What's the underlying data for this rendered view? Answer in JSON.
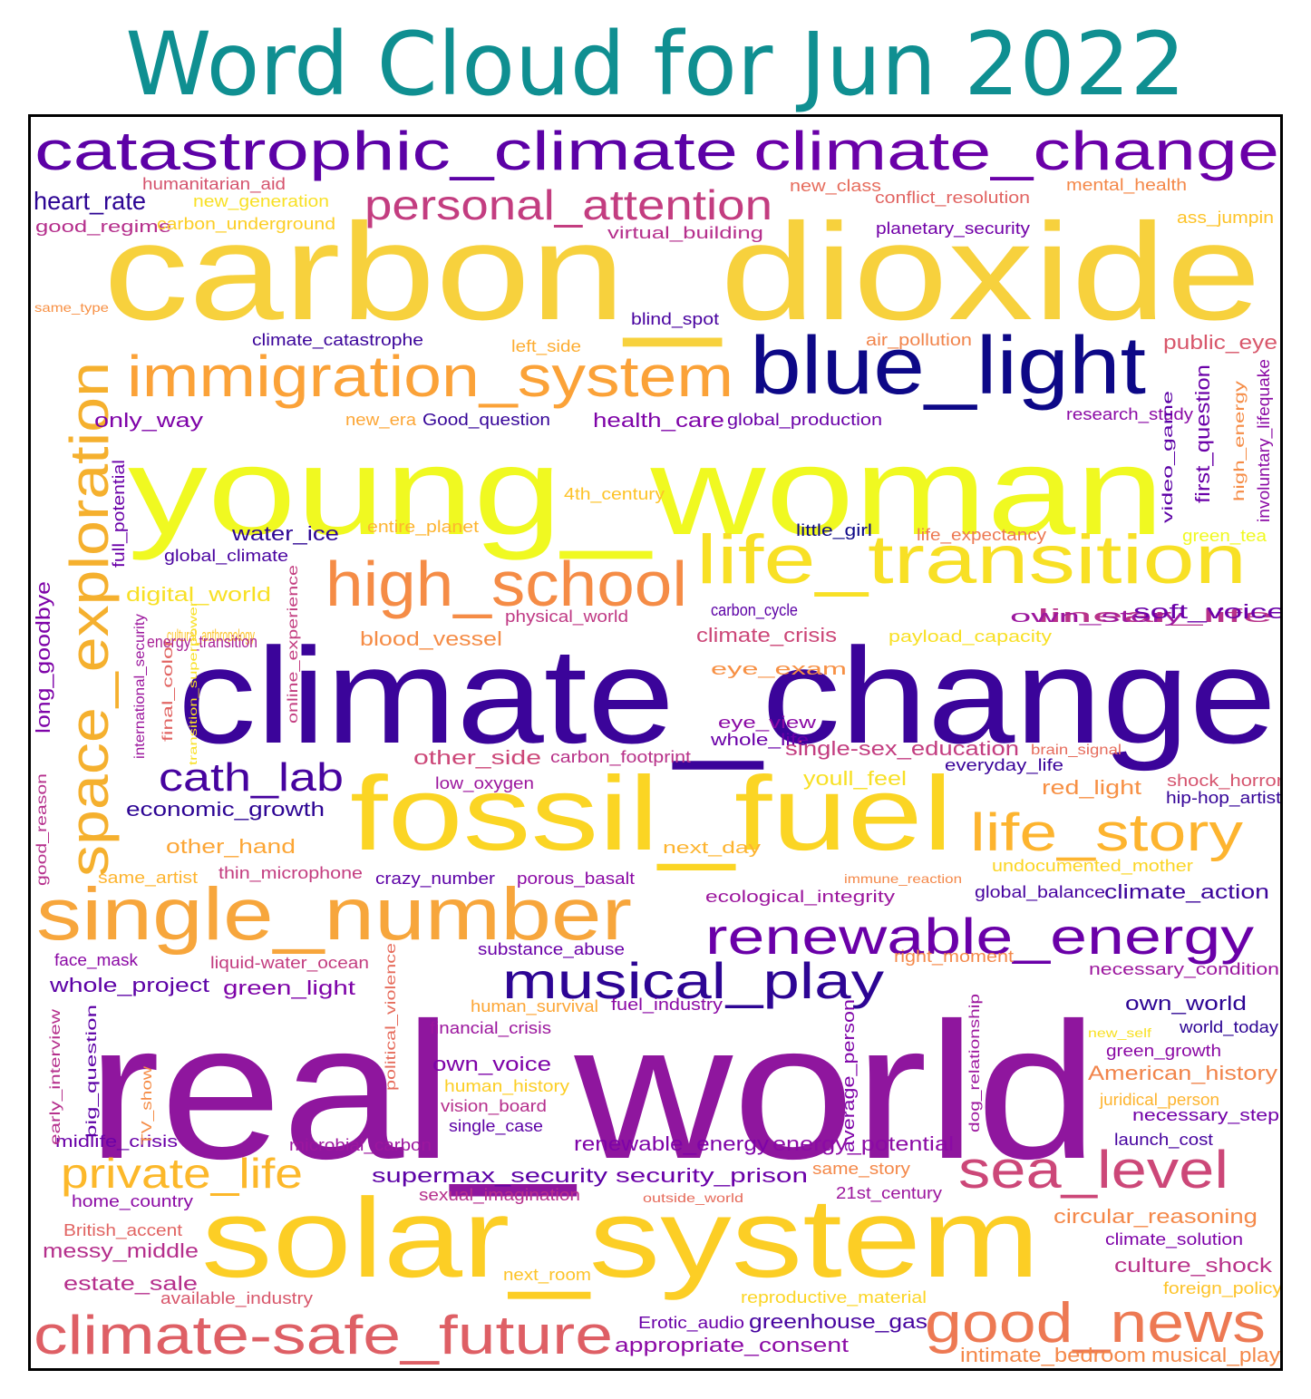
{
  "title": "Word Cloud for Jun 2022",
  "colors": {
    "title": "#0f8f91",
    "frame": "#000000",
    "palette": "plasma"
  },
  "words": [
    {
      "text": "real_world",
      "color": "#8f169e"
    },
    {
      "text": "climate_change",
      "color": "#3b049a"
    },
    {
      "text": "carbon_dioxide",
      "color": "#f7d13d"
    },
    {
      "text": "young_woman",
      "color": "#f0f921"
    },
    {
      "text": "solar_system",
      "color": "#fcce25"
    },
    {
      "text": "fossil_fuel",
      "color": "#fbd524"
    },
    {
      "text": "single_number",
      "color": "#f7a63c"
    },
    {
      "text": "blue_light",
      "color": "#0d0887"
    },
    {
      "text": "catastrophic_climate",
      "color": "#5c01a6"
    },
    {
      "text": "climate_change",
      "color": "#6a00a8"
    },
    {
      "text": "life_transition",
      "color": "#f8e025"
    },
    {
      "text": "high_school",
      "color": "#f58c46"
    },
    {
      "text": "immigration_system",
      "color": "#fba238"
    },
    {
      "text": "space_exploration",
      "color": "#f5b02e"
    },
    {
      "text": "renewable_energy",
      "color": "#6a00a8"
    },
    {
      "text": "musical_play",
      "color": "#2d0594"
    },
    {
      "text": "good_news",
      "color": "#ed7953"
    },
    {
      "text": "climate-safe_future",
      "color": "#de5f65"
    },
    {
      "text": "life_story",
      "color": "#fdb42f"
    },
    {
      "text": "sea_level",
      "color": "#cc4778"
    },
    {
      "text": "personal_attention",
      "color": "#c33d80"
    },
    {
      "text": "private_life",
      "color": "#fcb82a"
    },
    {
      "text": "cath_lab",
      "color": "#46039f"
    },
    {
      "text": "heart_rate",
      "color": "#2d0594"
    },
    {
      "text": "humanitarian_aid",
      "color": "#d5546e"
    },
    {
      "text": "new_generation",
      "color": "#f8e025"
    },
    {
      "text": "good_regime",
      "color": "#b52f8c"
    },
    {
      "text": "carbon_underground",
      "color": "#fcce25"
    },
    {
      "text": "virtual_building",
      "color": "#b52f8c"
    },
    {
      "text": "new_class",
      "color": "#e66c5c"
    },
    {
      "text": "conflict_resolution",
      "color": "#e16462"
    },
    {
      "text": "mental_health",
      "color": "#f48849"
    },
    {
      "text": "planetary_security",
      "color": "#7201a8"
    },
    {
      "text": "ass_jumpin",
      "color": "#fdc328"
    },
    {
      "text": "same_type",
      "color": "#f79044"
    },
    {
      "text": "blind_spot",
      "color": "#4903a0"
    },
    {
      "text": "climate_catastrophe",
      "color": "#3b049a"
    },
    {
      "text": "left_side",
      "color": "#fdad32"
    },
    {
      "text": "air_pollution",
      "color": "#f1844b"
    },
    {
      "text": "public_eye",
      "color": "#d8576b"
    },
    {
      "text": "only_way",
      "color": "#7e03a8"
    },
    {
      "text": "new_era",
      "color": "#fca636"
    },
    {
      "text": "Good_question",
      "color": "#350498"
    },
    {
      "text": "health_care",
      "color": "#7e03a8"
    },
    {
      "text": "global_production",
      "color": "#6a00a8"
    },
    {
      "text": "research_study",
      "color": "#8b0aa5"
    },
    {
      "text": "4th_century",
      "color": "#fdc328"
    },
    {
      "text": "entire_planet",
      "color": "#fdb42f"
    },
    {
      "text": "water_ice",
      "color": "#2d0594"
    },
    {
      "text": "little_girl",
      "color": "#0d0887"
    },
    {
      "text": "life_expectancy",
      "color": "#ed7953"
    },
    {
      "text": "green_tea",
      "color": "#f0f921"
    },
    {
      "text": "global_climate",
      "color": "#4903a0"
    },
    {
      "text": "digital_world",
      "color": "#f8e025"
    },
    {
      "text": "linear_life",
      "color": "#b83289"
    },
    {
      "text": "carbon_cycle",
      "color": "#5c01a6"
    },
    {
      "text": "own_story",
      "color": "#9c179e"
    },
    {
      "text": "physical_world",
      "color": "#bf3984"
    },
    {
      "text": "soft_voice",
      "color": "#6a00a8"
    },
    {
      "text": "cultural_anthropology",
      "color": "#fdc328"
    },
    {
      "text": "energy_transition",
      "color": "#a82296"
    },
    {
      "text": "blood_vessel",
      "color": "#f58c46"
    },
    {
      "text": "climate_crisis",
      "color": "#cc4778"
    },
    {
      "text": "payload_capacity",
      "color": "#f8e025"
    },
    {
      "text": "eye_exam",
      "color": "#f79044"
    },
    {
      "text": "eye_view",
      "color": "#8b0aa5"
    },
    {
      "text": "whole_life",
      "color": "#6a00a8"
    },
    {
      "text": "other_side",
      "color": "#cc4778"
    },
    {
      "text": "carbon_footprint",
      "color": "#b83289"
    },
    {
      "text": "single-sex_education",
      "color": "#c33d80"
    },
    {
      "text": "brain_signal",
      "color": "#e66c5c"
    },
    {
      "text": "everyday_life",
      "color": "#3b049a"
    },
    {
      "text": "youll_feel",
      "color": "#f8e025"
    },
    {
      "text": "low_oxygen",
      "color": "#9c179e"
    },
    {
      "text": "red_light",
      "color": "#f79044"
    },
    {
      "text": "shock_horror",
      "color": "#d5546e"
    },
    {
      "text": "hip-hop_artist",
      "color": "#350498"
    },
    {
      "text": "economic_growth",
      "color": "#2d0594"
    },
    {
      "text": "other_hand",
      "color": "#fca636"
    },
    {
      "text": "next_day",
      "color": "#fdb42f"
    },
    {
      "text": "undocumented_mother",
      "color": "#fbd524"
    },
    {
      "text": "same_artist",
      "color": "#fdb42f"
    },
    {
      "text": "thin_microphone",
      "color": "#c33d80"
    },
    {
      "text": "crazy_number",
      "color": "#5c01a6"
    },
    {
      "text": "porous_basalt",
      "color": "#8b0aa5"
    },
    {
      "text": "immune_reaction",
      "color": "#f48849"
    },
    {
      "text": "ecological_integrity",
      "color": "#9c179e"
    },
    {
      "text": "global_balance",
      "color": "#46039f"
    },
    {
      "text": "climate_action",
      "color": "#3b049a"
    },
    {
      "text": "face_mask",
      "color": "#8b0aa5"
    },
    {
      "text": "liquid-water_ocean",
      "color": "#c33d80"
    },
    {
      "text": "substance_abuse",
      "color": "#6a00a8"
    },
    {
      "text": "right_moment",
      "color": "#f48849"
    },
    {
      "text": "necessary_condition",
      "color": "#9c179e"
    },
    {
      "text": "whole_project",
      "color": "#5c01a6"
    },
    {
      "text": "green_light",
      "color": "#7e03a8"
    },
    {
      "text": "human_survival",
      "color": "#fca636"
    },
    {
      "text": "fuel_industry",
      "color": "#8b0aa5"
    },
    {
      "text": "own_world",
      "color": "#2d0594"
    },
    {
      "text": "financial_crisis",
      "color": "#9c179e"
    },
    {
      "text": "new_self",
      "color": "#f8e025"
    },
    {
      "text": "world_today",
      "color": "#2d0594"
    },
    {
      "text": "own_voice",
      "color": "#7e03a8"
    },
    {
      "text": "green_growth",
      "color": "#8b0aa5"
    },
    {
      "text": "human_history",
      "color": "#fcce25"
    },
    {
      "text": "American_history",
      "color": "#f1844b"
    },
    {
      "text": "vision_board",
      "color": "#b52f8c"
    },
    {
      "text": "juridical_person",
      "color": "#fdb42f"
    },
    {
      "text": "single_case",
      "color": "#5c01a6"
    },
    {
      "text": "necessary_step",
      "color": "#7201a8"
    },
    {
      "text": "midlife_crisis",
      "color": "#6a00a8"
    },
    {
      "text": "microbial_carbon",
      "color": "#9c179e"
    },
    {
      "text": "renewable_energy",
      "color": "#7e03a8"
    },
    {
      "text": "energy_potential",
      "color": "#8b0aa5"
    },
    {
      "text": "launch_cost",
      "color": "#46039f"
    },
    {
      "text": "supermax_security",
      "color": "#5c01a6"
    },
    {
      "text": "security_prison",
      "color": "#6a00a8"
    },
    {
      "text": "same_story",
      "color": "#f48849"
    },
    {
      "text": "21st_century",
      "color": "#9c179e"
    },
    {
      "text": "sexual_imagination",
      "color": "#b52f8c"
    },
    {
      "text": "outside_world",
      "color": "#e66c5c"
    },
    {
      "text": "home_country",
      "color": "#8b0aa5"
    },
    {
      "text": "circular_reasoning",
      "color": "#f48849"
    },
    {
      "text": "British_accent",
      "color": "#e16462"
    },
    {
      "text": "climate_solution",
      "color": "#7e03a8"
    },
    {
      "text": "messy_middle",
      "color": "#b52f8c"
    },
    {
      "text": "culture_shock",
      "color": "#b83289"
    },
    {
      "text": "next_room",
      "color": "#fdc328"
    },
    {
      "text": "foreign_policy",
      "color": "#fdc328"
    },
    {
      "text": "estate_sale",
      "color": "#b52f8c"
    },
    {
      "text": "available_industry",
      "color": "#d8576b"
    },
    {
      "text": "reproductive_material",
      "color": "#fbd524"
    },
    {
      "text": "Erotic_audio",
      "color": "#6a00a8"
    },
    {
      "text": "greenhouse_gas",
      "color": "#46039f"
    },
    {
      "text": "appropriate_consent",
      "color": "#8b0aa5"
    },
    {
      "text": "intimate_bedroom",
      "color": "#f48849"
    },
    {
      "text": "musical_play",
      "color": "#f48849"
    },
    {
      "text": "first_question",
      "color": "#6a00a8"
    },
    {
      "text": "high_energy",
      "color": "#f58c46"
    },
    {
      "text": "involuntary_lifequake",
      "color": "#8b0aa5"
    },
    {
      "text": "video_game",
      "color": "#5c01a6"
    },
    {
      "text": "full_potential",
      "color": "#6a00a8"
    },
    {
      "text": "long_goodbye",
      "color": "#7e03a8"
    },
    {
      "text": "international_security",
      "color": "#9c179e"
    },
    {
      "text": "final_color",
      "color": "#e16462"
    },
    {
      "text": "online_experience",
      "color": "#c33d80"
    },
    {
      "text": "transition_superpower",
      "color": "#f8e025"
    },
    {
      "text": "good_reason",
      "color": "#b52f8c"
    },
    {
      "text": "political_violence",
      "color": "#e66c5c"
    },
    {
      "text": "average_person",
      "color": "#7e03a8"
    },
    {
      "text": "dog_relationship",
      "color": "#9c179e"
    },
    {
      "text": "big_question",
      "color": "#5c01a6"
    },
    {
      "text": "TV_show",
      "color": "#f58c46"
    },
    {
      "text": "early_interview",
      "color": "#b52f8c"
    }
  ]
}
